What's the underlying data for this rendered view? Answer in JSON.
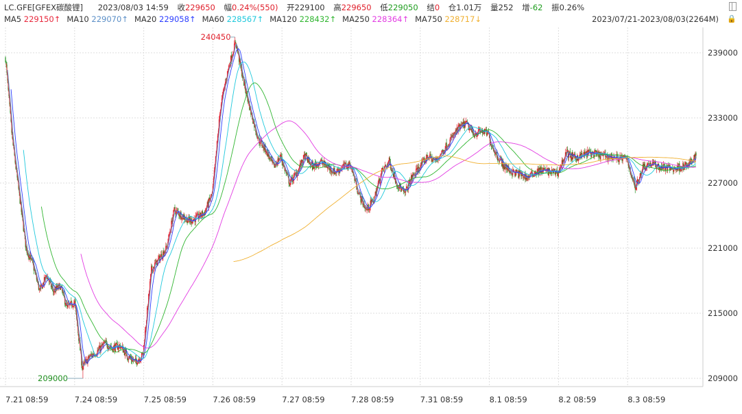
{
  "header": {
    "symbol": "LC.GFE[GFEX碳酸锂]",
    "datetime": "2023/08/03 14:59",
    "close_label": "收",
    "close": "229650",
    "change_label": "幅",
    "change": "0.24%(550)",
    "open_label": "开",
    "open": "229100",
    "high_label": "高",
    "high": "229650",
    "low_label": "低",
    "low": "229050",
    "settle_label": "结",
    "settle": "0",
    "oi_label": "仓",
    "oi": "1.01万",
    "volume_label": "量",
    "volume": "252",
    "oi_change_label": "增",
    "oi_change": "-62",
    "amplitude_label": "振",
    "amplitude": "0.26%"
  },
  "ma_legend": [
    {
      "name": "MA5",
      "value": "229150↑",
      "color": "#e8283c"
    },
    {
      "name": "MA10",
      "value": "229070↑",
      "color": "#5b8fc7"
    },
    {
      "name": "MA20",
      "value": "229058↑",
      "color": "#2a3cff"
    },
    {
      "name": "MA60",
      "value": "228567↑",
      "color": "#1ec8dc"
    },
    {
      "name": "MA120",
      "value": "228432↑",
      "color": "#2fb52f"
    },
    {
      "name": "MA250",
      "value": "228364↑",
      "color": "#e23ae2"
    },
    {
      "name": "MA750",
      "value": "228717↓",
      "color": "#f0b030"
    }
  ],
  "range_text": "2023/07/21-2023/08/03(2264M)",
  "icons": {
    "panel": "panel-toggle-icon",
    "lock": "lock-icon"
  },
  "chart_data": {
    "type": "candlestick",
    "timeframe": "1-minute",
    "total_minutes": 2264,
    "y_ticks": [
      239000,
      233000,
      227000,
      221000,
      215000,
      209000
    ],
    "ylim": [
      207500,
      241000
    ],
    "x_ticks": [
      "7.21 08:59",
      "7.24 08:59",
      "7.25 08:59",
      "7.26 08:59",
      "7.27 08:59",
      "7.28 08:59",
      "7.31 08:59",
      "8.1 08:59",
      "8.2 08:59",
      "8.3 08:59"
    ],
    "grid": true,
    "annotations": [
      {
        "text": "240450",
        "type": "max"
      },
      {
        "text": "209000",
        "type": "min"
      }
    ],
    "up_color": "#e0202c",
    "down_color": "#1f8f1f",
    "ma_periods": [
      5,
      10,
      20,
      60,
      120,
      250,
      750
    ],
    "session_price_path": [
      {
        "session": "7.21",
        "path": [
          238500,
          231000,
          226000,
          221000,
          219500,
          217000,
          218500,
          217000,
          217500,
          215500,
          216000
        ]
      },
      {
        "session": "7.24",
        "path": [
          216000,
          210000,
          211000,
          211500,
          212200,
          211800,
          212000,
          211000,
          210500,
          211200
        ]
      },
      {
        "session": "7.25",
        "path": [
          212000,
          219000,
          220000,
          221000,
          224500,
          224000,
          223500,
          223800,
          224300,
          226000
        ]
      },
      {
        "session": "7.26",
        "path": [
          226500,
          234000,
          237500,
          240000,
          236500,
          233500,
          231000,
          230000,
          228500,
          229500
        ]
      },
      {
        "session": "7.27",
        "path": [
          229000,
          227000,
          228000,
          229500,
          228500,
          229000,
          228500,
          228000,
          228500,
          228700
        ]
      },
      {
        "session": "7.28",
        "path": [
          228500,
          226000,
          224500,
          225500,
          228000,
          229000,
          227000,
          226000,
          227500,
          228500
        ]
      },
      {
        "session": "7.31",
        "path": [
          228500,
          229500,
          229000,
          230000,
          231000,
          232000,
          232500,
          231500,
          231800,
          231500
        ]
      },
      {
        "session": "8.1",
        "path": [
          231000,
          229500,
          228500,
          228000,
          227800,
          227500,
          228000,
          228200,
          228000,
          228000
        ]
      },
      {
        "session": "8.2",
        "path": [
          228000,
          229800,
          229300,
          229500,
          229800,
          229600,
          229500,
          229400,
          229300,
          229200
        ]
      },
      {
        "session": "8.3",
        "path": [
          229000,
          226500,
          228500,
          228800,
          228500,
          228400,
          228300,
          228500,
          228600,
          229650
        ]
      }
    ]
  }
}
